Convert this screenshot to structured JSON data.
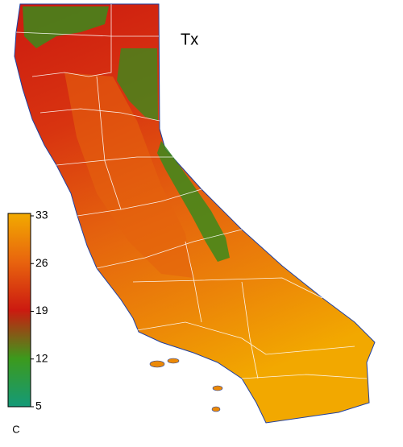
{
  "title": "Tx",
  "colorbar": {
    "range": [
      5,
      33
    ],
    "ticks": [
      5,
      12,
      19,
      26,
      33
    ],
    "unit": "C",
    "colors": [
      "#149a78",
      "#3c9a1c",
      "#cc1a10",
      "#e8640e",
      "#f2aa00"
    ]
  }
}
